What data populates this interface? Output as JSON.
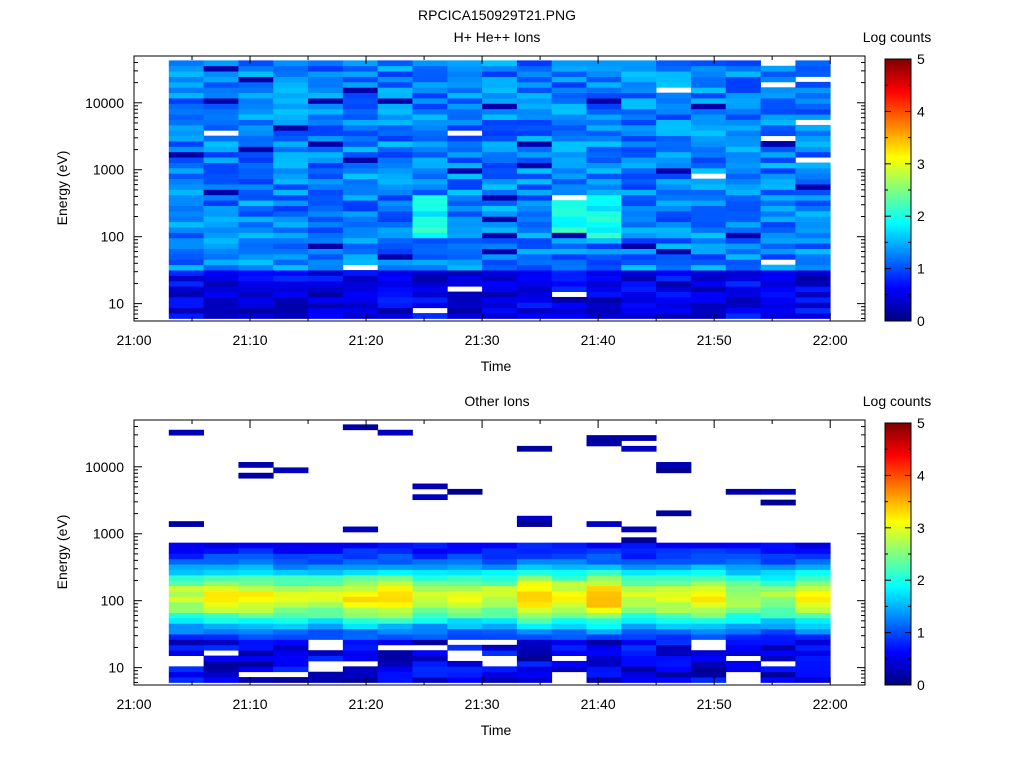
{
  "title": "RPCICA150929T21.PNG",
  "colorbar": {
    "label": "Log counts",
    "ticks": [
      "0",
      "1",
      "2",
      "3",
      "4",
      "5"
    ],
    "range": [
      0,
      5
    ],
    "colors": [
      "#00007f",
      "#0000ff",
      "#007fff",
      "#00ffff",
      "#7fff7f",
      "#ffff00",
      "#ff7f00",
      "#ff0000",
      "#7f0000"
    ]
  },
  "chart_data": [
    {
      "type": "heatmap",
      "title": "H+ He++ Ions",
      "xlabel": "Time",
      "ylabel": "Energy (eV)",
      "x_tick_labels": [
        "21:00",
        "21:10",
        "21:20",
        "21:30",
        "21:40",
        "21:50",
        "22:00"
      ],
      "y_tick_labels": [
        "10",
        "100",
        "1000",
        "10000"
      ],
      "y_scale": "log",
      "xlim": [
        "21:00",
        "22:03"
      ],
      "ylim": [
        5.5,
        50000
      ],
      "time_columns": [
        "21:03",
        "21:06",
        "21:09",
        "21:12",
        "21:15",
        "21:18",
        "21:21",
        "21:24",
        "21:27",
        "21:30",
        "21:33",
        "21:36",
        "21:39",
        "21:42",
        "21:45",
        "21:48",
        "21:51",
        "21:54",
        "21:57"
      ],
      "energy_bins": 48,
      "energy_range": [
        6,
        43000
      ],
      "value_range_log_counts": [
        0,
        2.5
      ],
      "description_level": "mostly 0.8-1.6 log counts at all energies, 0.3-0.8 below 30 eV, up to 2.3 near 200 eV around 21:24 and 21:36-21:39"
    },
    {
      "type": "heatmap",
      "title": "Other Ions",
      "xlabel": "Time",
      "ylabel": "Energy (eV)",
      "x_tick_labels": [
        "21:00",
        "21:10",
        "21:20",
        "21:30",
        "21:40",
        "21:50",
        "22:00"
      ],
      "y_tick_labels": [
        "10",
        "100",
        "1000",
        "10000"
      ],
      "y_scale": "log",
      "xlim": [
        "21:00",
        "22:03"
      ],
      "ylim": [
        5.5,
        50000
      ],
      "time_columns": [
        "21:03",
        "21:06",
        "21:09",
        "21:12",
        "21:15",
        "21:18",
        "21:21",
        "21:24",
        "21:27",
        "21:30",
        "21:33",
        "21:36",
        "21:39",
        "21:42",
        "21:45",
        "21:48",
        "21:51",
        "21:54",
        "21:57"
      ],
      "energy_bins": 48,
      "energy_range": [
        6,
        43000
      ],
      "value_range_log_counts": [
        0,
        3.5
      ],
      "peak_log_counts_by_column": [
        2.9,
        3.1,
        3.1,
        2.9,
        2.9,
        3.2,
        3.4,
        2.9,
        3.0,
        2.9,
        3.5,
        3.2,
        3.5,
        2.9,
        3.0,
        3.3,
        2.8,
        2.7,
        3.1
      ]
    }
  ]
}
